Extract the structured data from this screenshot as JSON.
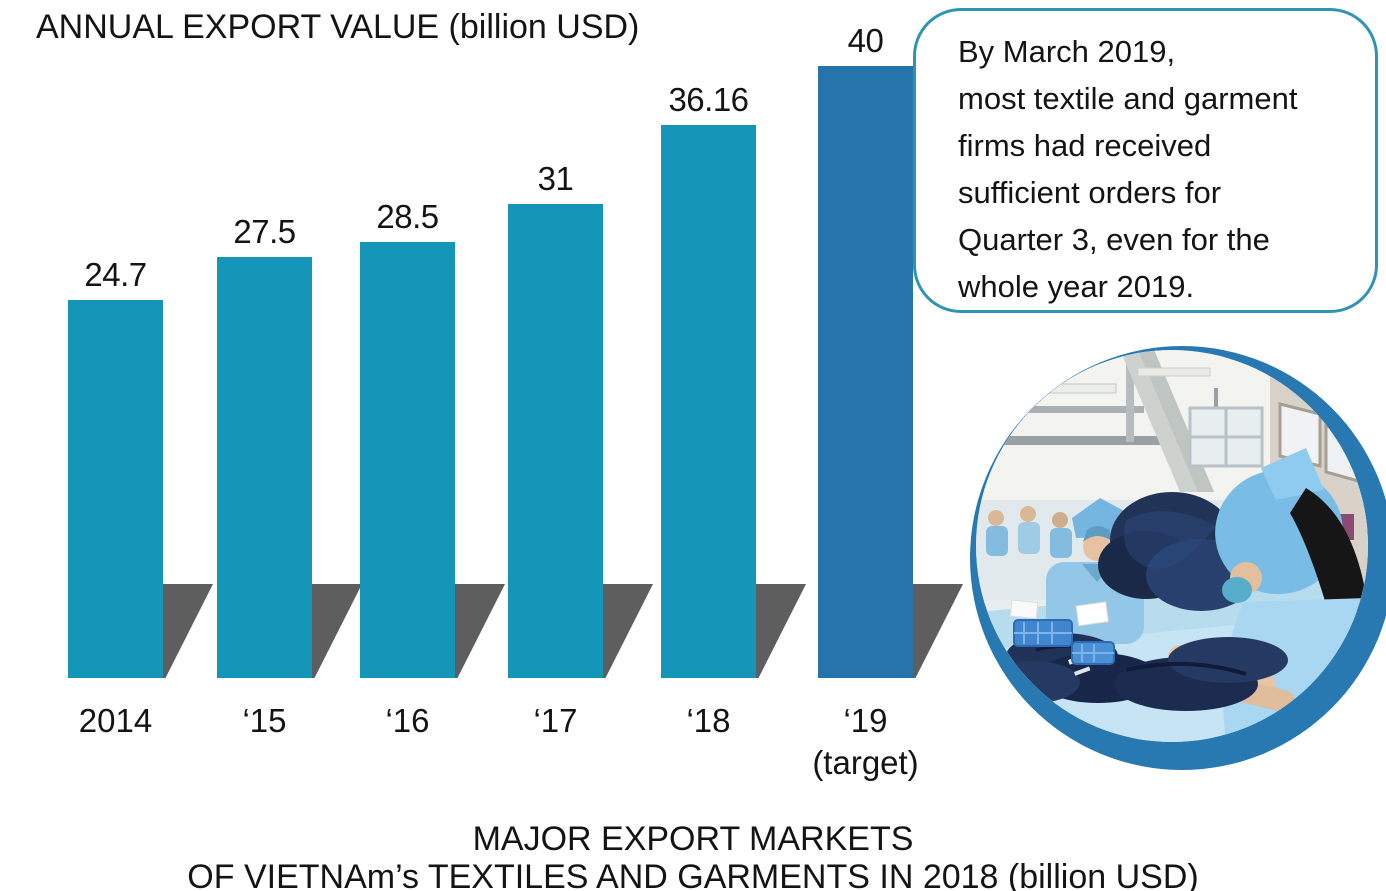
{
  "title": "ANNUAL EXPORT VALUE (billion USD)",
  "chart_data": {
    "type": "bar",
    "title": "ANNUAL EXPORT VALUE (billion USD)",
    "categories": [
      "2014",
      "‘15",
      "‘16",
      "‘17",
      "‘18",
      "‘19 (target)"
    ],
    "values": [
      24.7,
      27.5,
      28.5,
      31,
      36.16,
      40
    ],
    "value_labels": [
      "24.7",
      "27.5",
      "28.5",
      "31",
      "36.16",
      "40"
    ],
    "x_tick_labels": [
      "2014",
      "‘15",
      "‘16",
      "‘17",
      "‘18",
      "‘19\n(target)"
    ],
    "slugs": [
      "2014",
      "15",
      "16",
      "17",
      "18",
      "19-target"
    ],
    "highlight_index": 5,
    "ylim": [
      0,
      42
    ],
    "grid": false,
    "legend": "none",
    "bar_color_default": "#1496b8",
    "bar_color_target": "#2674ac",
    "shadow_color": "#5e5e5e"
  },
  "callout": {
    "text": "By March 2019,\nmost textile and garment\nfirms had received\nsufficient orders for\nQuarter 3, even for the\nwhole year 2019.",
    "border_color": "#2f93b4"
  },
  "photo": {
    "name": "textile-factory-workers",
    "ring_color": "#2878b2"
  },
  "footer": {
    "line1": "MAJOR EXPORT MARKETS",
    "line2": "OF VIETNAm’s TEXTILES AND GARMENTS IN 2018 (billion USD)"
  }
}
